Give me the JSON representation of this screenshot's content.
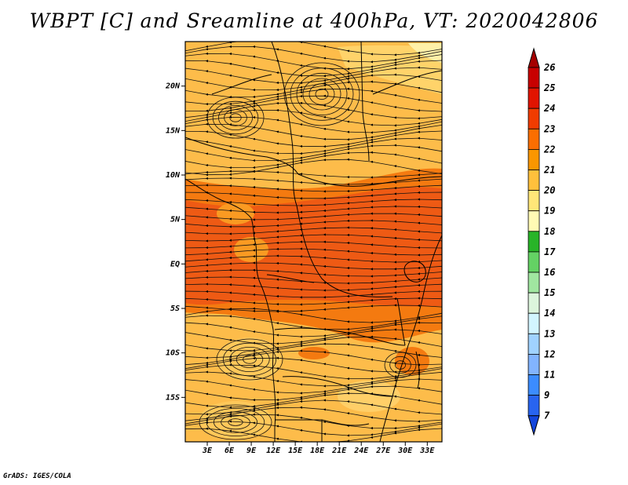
{
  "title": "WBPT [C] and Sreamline at 400hPa, VT: 2020042806",
  "credit": "GrADS: IGES/COLA",
  "map": {
    "lon_range": [
      0,
      35
    ],
    "lat_range": [
      -20,
      25
    ],
    "lat_ticks": [
      {
        "value": 20,
        "label": "20N"
      },
      {
        "value": 15,
        "label": "15N"
      },
      {
        "value": 10,
        "label": "10N"
      },
      {
        "value": 5,
        "label": "5N"
      },
      {
        "value": 0,
        "label": "EQ"
      },
      {
        "value": -5,
        "label": "5S"
      },
      {
        "value": -10,
        "label": "10S"
      },
      {
        "value": -15,
        "label": "15S"
      }
    ],
    "lon_ticks": [
      {
        "value": 3,
        "label": "3E"
      },
      {
        "value": 6,
        "label": "6E"
      },
      {
        "value": 9,
        "label": "9E"
      },
      {
        "value": 12,
        "label": "12E"
      },
      {
        "value": 15,
        "label": "15E"
      },
      {
        "value": 18,
        "label": "18E"
      },
      {
        "value": 21,
        "label": "21E"
      },
      {
        "value": 24,
        "label": "24E"
      },
      {
        "value": 27,
        "label": "27E"
      },
      {
        "value": 30,
        "label": "30E"
      },
      {
        "value": 33,
        "label": "33E"
      }
    ]
  },
  "colorbar": {
    "labels": [
      "26",
      "25",
      "24",
      "23",
      "22",
      "21",
      "20",
      "19",
      "18",
      "17",
      "16",
      "15",
      "14",
      "13",
      "12",
      "11",
      "9",
      "7"
    ],
    "colors": [
      "#a50000",
      "#c80000",
      "#e11400",
      "#f03c00",
      "#fa6e00",
      "#fa9600",
      "#ffc03c",
      "#ffe678",
      "#fffab4",
      "#28b428",
      "#64d264",
      "#a0e6a0",
      "#dcf5dc",
      "#d2f5ff",
      "#a0d2ff",
      "#82b4ff",
      "#3c8cff",
      "#2864f0",
      "#1446dc"
    ]
  }
}
